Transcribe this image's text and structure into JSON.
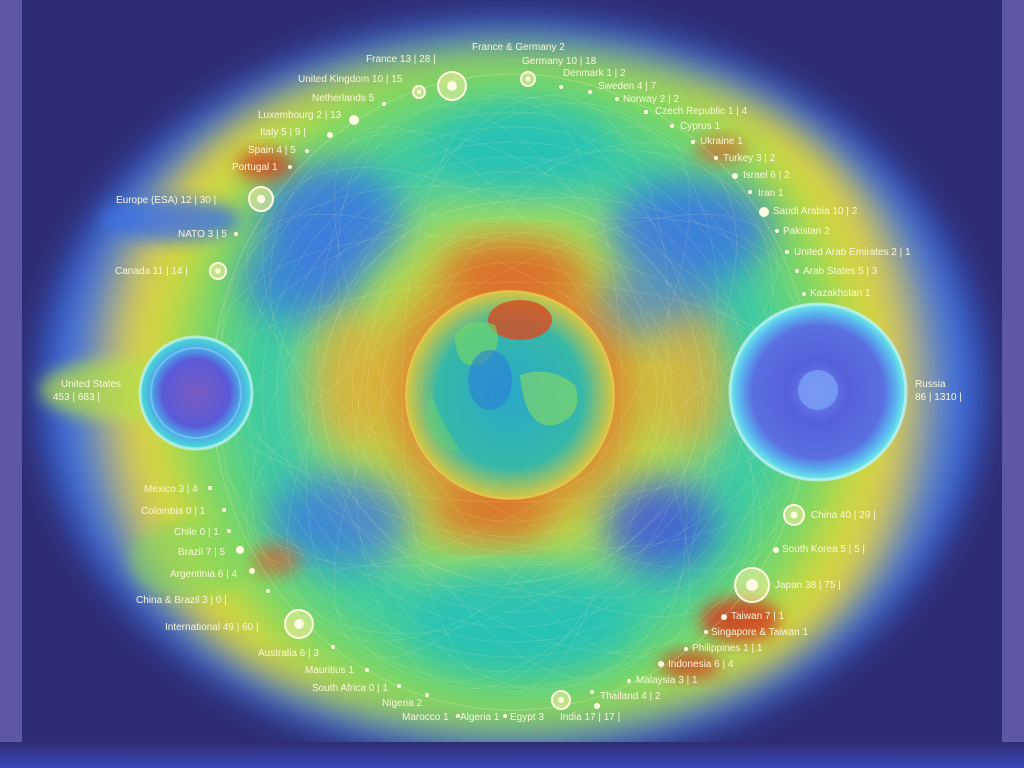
{
  "heatmap_colors": [
    "#2e2c74",
    "#3a6fe6",
    "#1fc0c0",
    "#3fd07a",
    "#b4e04a",
    "#f0d830",
    "#f08a2a",
    "#d8301e"
  ],
  "us": {
    "name": "United States",
    "value": "453 | 683 |"
  },
  "russia": {
    "name": "Russia",
    "value": "86 | 1310 |"
  },
  "countries": [
    {
      "key": "france_germany",
      "text": "France & Germany 2"
    },
    {
      "key": "france",
      "text": "France 13 | 28 |"
    },
    {
      "key": "germany",
      "text": "Germany 10 | 18"
    },
    {
      "key": "uk",
      "text": "United Kingdom 10 | 15"
    },
    {
      "key": "netherlands",
      "text": "Netherlands 5"
    },
    {
      "key": "denmark",
      "text": "Denmark 1 | 2"
    },
    {
      "key": "sweden",
      "text": "Sweden 4 | 7"
    },
    {
      "key": "norway",
      "text": "Norway 2 | 2"
    },
    {
      "key": "luxembourg",
      "text": "Luxembourg 2 | 13"
    },
    {
      "key": "czech",
      "text": "Czech Republic 1 | 4"
    },
    {
      "key": "cyprus",
      "text": "Cyprus 1"
    },
    {
      "key": "italy",
      "text": "Italy 5 | 9 |"
    },
    {
      "key": "spain",
      "text": "Spain 4 | 5"
    },
    {
      "key": "ukraine",
      "text": "Ukraine 1"
    },
    {
      "key": "portugal",
      "text": "Portugal 1"
    },
    {
      "key": "turkey",
      "text": "Turkey 3 | 2"
    },
    {
      "key": "israel",
      "text": "Israel 6 | 2"
    },
    {
      "key": "iran",
      "text": "Iran 1"
    },
    {
      "key": "esa",
      "text": "Europe (ESA) 12 | 30 |"
    },
    {
      "key": "saudi",
      "text": "Saudi Arabia 10 | 2"
    },
    {
      "key": "nato",
      "text": "NATO 3 | 5"
    },
    {
      "key": "pakistan",
      "text": "Pakistan 2"
    },
    {
      "key": "uae",
      "text": "United Arab Emirates 2 | 1"
    },
    {
      "key": "canada",
      "text": "Canada 11 | 14 |"
    },
    {
      "key": "arab",
      "text": "Arab States 5 | 3"
    },
    {
      "key": "kazakhstan",
      "text": "Kazakhstan 1"
    },
    {
      "key": "mexico",
      "text": "Mexico 3 | 4"
    },
    {
      "key": "colombia",
      "text": "Colombia 0 | 1"
    },
    {
      "key": "chile",
      "text": "Chile 0 | 1"
    },
    {
      "key": "brazil",
      "text": "Brazil 7 | 5"
    },
    {
      "key": "argentina",
      "text": "Argentinia 6 | 4"
    },
    {
      "key": "china_brazil",
      "text": "China & Brazil 3 | 0 |"
    },
    {
      "key": "international",
      "text": "International 49 | 60 |"
    },
    {
      "key": "australia",
      "text": "Australia 6 | 3"
    },
    {
      "key": "mauritius",
      "text": "Mauritius 1"
    },
    {
      "key": "south_africa",
      "text": "South Africa 0 | 1"
    },
    {
      "key": "nigeria",
      "text": "Nigeria 2"
    },
    {
      "key": "marocco",
      "text": "Marocco 1"
    },
    {
      "key": "algeria",
      "text": "Algeria 1"
    },
    {
      "key": "egypt",
      "text": "Egypt 3"
    },
    {
      "key": "india",
      "text": "India 17 | 17 |"
    },
    {
      "key": "thailand",
      "text": "Thailand 4 | 2"
    },
    {
      "key": "malaysia",
      "text": "Malaysia 3 | 1"
    },
    {
      "key": "indonesia",
      "text": "Indonesia 6 | 4"
    },
    {
      "key": "philippines",
      "text": "Philippines 1 | 1"
    },
    {
      "key": "singapore_taiwan",
      "text": "Singapore & Taiwan 1"
    },
    {
      "key": "taiwan",
      "text": "Taiwan 7 | 1"
    },
    {
      "key": "japan",
      "text": "Japan 38 | 75 |"
    },
    {
      "key": "south_korea",
      "text": "South Korea 5 | 5 |"
    },
    {
      "key": "china",
      "text": "China 40 | 29 |"
    }
  ]
}
